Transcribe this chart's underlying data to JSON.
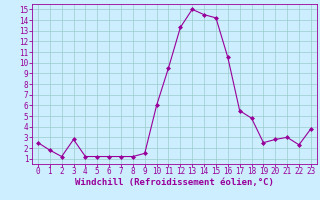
{
  "x": [
    0,
    1,
    2,
    3,
    4,
    5,
    6,
    7,
    8,
    9,
    10,
    11,
    12,
    13,
    14,
    15,
    16,
    17,
    18,
    19,
    20,
    21,
    22,
    23
  ],
  "y": [
    2.5,
    1.8,
    1.2,
    2.8,
    1.2,
    1.2,
    1.2,
    1.2,
    1.2,
    1.5,
    6.0,
    9.5,
    13.3,
    15.0,
    14.5,
    14.2,
    10.5,
    5.5,
    4.8,
    2.5,
    2.8,
    3.0,
    2.3,
    3.8
  ],
  "line_color": "#990099",
  "marker": "D",
  "marker_size": 2.0,
  "bg_color": "#cceeff",
  "grid_color": "#99cccc",
  "xlabel": "Windchill (Refroidissement éolien,°C)",
  "xlim": [
    -0.5,
    23.5
  ],
  "ylim": [
    0.5,
    15.5
  ],
  "yticks": [
    1,
    2,
    3,
    4,
    5,
    6,
    7,
    8,
    9,
    10,
    11,
    12,
    13,
    14,
    15
  ],
  "xticks": [
    0,
    1,
    2,
    3,
    4,
    5,
    6,
    7,
    8,
    9,
    10,
    11,
    12,
    13,
    14,
    15,
    16,
    17,
    18,
    19,
    20,
    21,
    22,
    23
  ],
  "tick_color": "#990099",
  "label_color": "#990099",
  "xlabel_fontsize": 6.5,
  "tick_fontsize": 5.5,
  "line_width": 0.8
}
